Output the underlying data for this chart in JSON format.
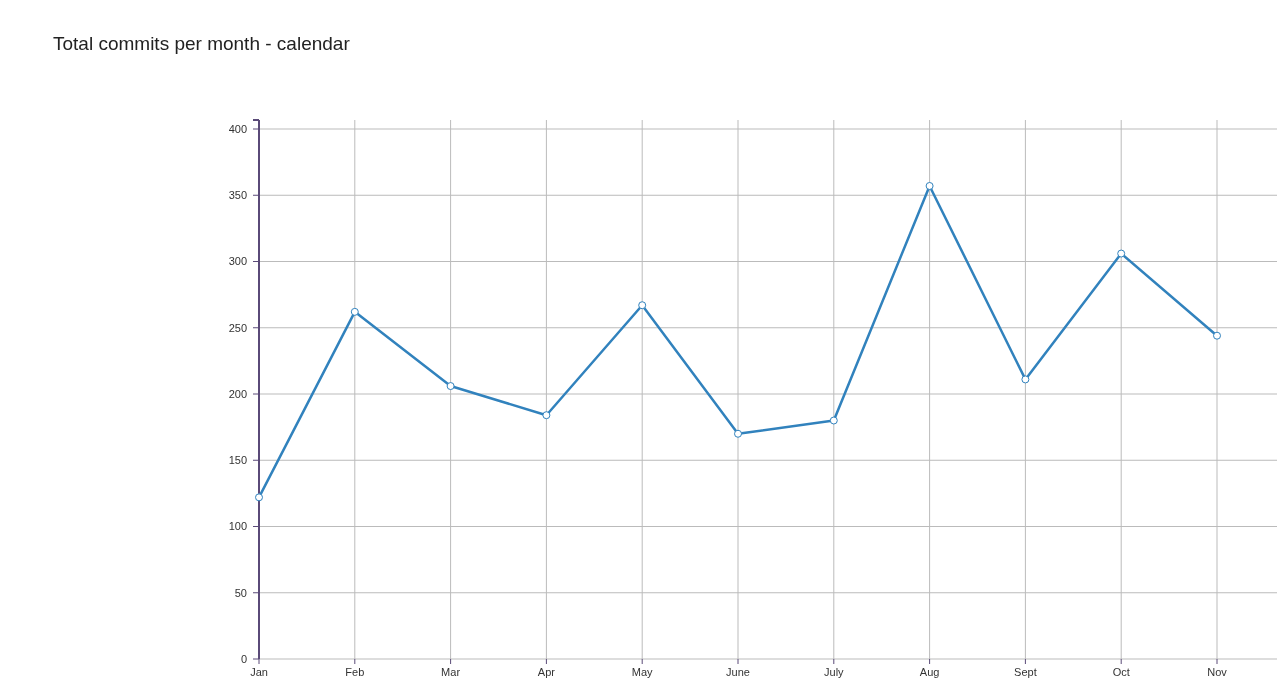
{
  "chart_data": {
    "type": "line",
    "title": "Total commits per month - calendar",
    "categories": [
      "Jan",
      "Feb",
      "Mar",
      "Apr",
      "May",
      "June",
      "July",
      "Aug",
      "Sept",
      "Oct",
      "Nov"
    ],
    "values": [
      122,
      262,
      206,
      184,
      267,
      170,
      180,
      357,
      211,
      306,
      244
    ],
    "color": "#3182bd",
    "ylim": [
      0,
      400
    ],
    "yticks": [
      0,
      50,
      100,
      150,
      200,
      250,
      300,
      350,
      400
    ],
    "grid": true,
    "marker": "circle"
  }
}
